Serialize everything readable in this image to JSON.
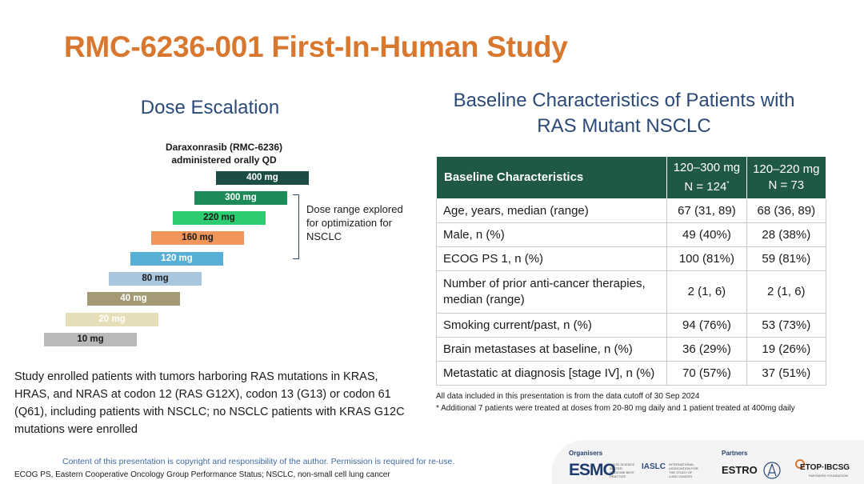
{
  "title": "RMC-6236-001 First-In-Human Study",
  "dose_escalation": {
    "heading": "Dose Escalation",
    "drug_line1": "Daraxonrasib (RMC-6236)",
    "drug_line2": "administered orally QD",
    "doses": [
      {
        "label": "400 mg",
        "color": "#1b4d45"
      },
      {
        "label": "300 mg",
        "color": "#1e8a57"
      },
      {
        "label": "220 mg",
        "color": "#2ecc71"
      },
      {
        "label": "160 mg",
        "color": "#f0965a"
      },
      {
        "label": "120 mg",
        "color": "#5aafd6"
      },
      {
        "label": "80 mg",
        "color": "#a9c6df"
      },
      {
        "label": "40 mg",
        "color": "#a49a75"
      },
      {
        "label": "20 mg",
        "color": "#e6deb9"
      },
      {
        "label": "10 mg",
        "color": "#b9b9b9"
      }
    ],
    "bracket_label": "Dose range explored for optimization for NSCLC"
  },
  "study_note": "Study enrolled patients with tumors harboring RAS mutations in KRAS, HRAS, and NRAS at codon 12 (RAS G12X), codon 13 (G13) or codon 61 (Q61), including patients with NSCLC; no NSCLC patients with  KRAS G12C mutations were enrolled",
  "baseline": {
    "heading": "Baseline Characteristics of Patients with RAS Mutant NSCLC",
    "col1_header": "Baseline Characteristics",
    "col2_header_line1": "120–300 mg",
    "col2_header_line2": "N = 124",
    "col2_footnote_mark": "*",
    "col3_header_line1": "120–220 mg",
    "col3_header_line2": "N = 73",
    "rows": [
      {
        "label": "Age, years, median (range)",
        "a": "67 (31, 89)",
        "b": "68 (36, 89)"
      },
      {
        "label": "Male, n (%)",
        "a": "49 (40%)",
        "b": "28 (38%)"
      },
      {
        "label": "ECOG PS 1, n (%)",
        "a": "100 (81%)",
        "b": "59 (81%)"
      },
      {
        "label": "Number of prior anti-cancer therapies, median (range)",
        "a": "2 (1, 6)",
        "b": "2 (1, 6)"
      },
      {
        "label": "Smoking current/past, n (%)",
        "a": "94 (76%)",
        "b": "53 (73%)"
      },
      {
        "label": "Brain metastases at baseline, n (%)",
        "a": "36 (29%)",
        "b": "19 (26%)"
      },
      {
        "label": "Metastatic at diagnosis [stage IV], n (%)",
        "a": "70 (57%)",
        "b": "37 (51%)"
      }
    ],
    "footnote1": "All data included in this presentation is from the data cutoff of 30 Sep 2024",
    "footnote2": "* Additional 7 patients were treated at doses from 20-80 mg daily and 1 patient treated at 400mg daily"
  },
  "copyright": "Content of this presentation is copyright and responsibility of the author. Permission is required for re-use.",
  "abbreviations": "ECOG PS, Eastern Cooperative Oncology Group Performance Status; NSCLC, non-small cell lung cancer",
  "logos": {
    "organisers_label": "Organisers",
    "partners_label": "Partners",
    "esmo": "ESMO",
    "esmo_sub": "GOOD SCIENCE BETTER MEDICINE BEST PRACTICE",
    "iaslc": "IASLC",
    "iaslc_sub": "INTERNATIONAL ASSOCIATION FOR THE STUDY OF LUNG CANCER",
    "estro": "ESTRO",
    "etop": "ETOP·IBCSG",
    "etop_sub": "PARTNERS FOUNDATION"
  }
}
